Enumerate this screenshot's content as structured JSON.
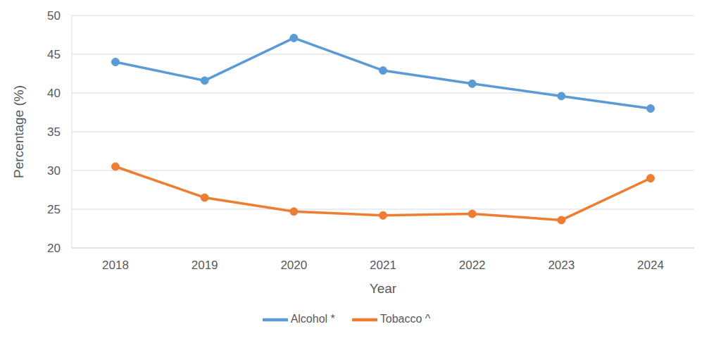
{
  "chart_data": {
    "type": "line",
    "x_label": "Year",
    "y_label": "Percentage (%)",
    "categories": [
      "2018",
      "2019",
      "2020",
      "2021",
      "2022",
      "2023",
      "2024"
    ],
    "series": [
      {
        "name": "Alcohol *",
        "color": "#5b9bd5",
        "marker": "circle",
        "values": [
          44.0,
          41.6,
          47.1,
          42.9,
          41.2,
          39.6,
          38.0
        ]
      },
      {
        "name": "Tobacco ^",
        "color": "#ed7d31",
        "marker": "circle",
        "values": [
          30.5,
          26.5,
          24.7,
          24.2,
          24.4,
          23.6,
          29.0
        ]
      }
    ],
    "ylim": [
      20,
      50
    ],
    "yticks": [
      20,
      25,
      30,
      35,
      40,
      45,
      50
    ],
    "grid": true,
    "legend": "bottom"
  }
}
